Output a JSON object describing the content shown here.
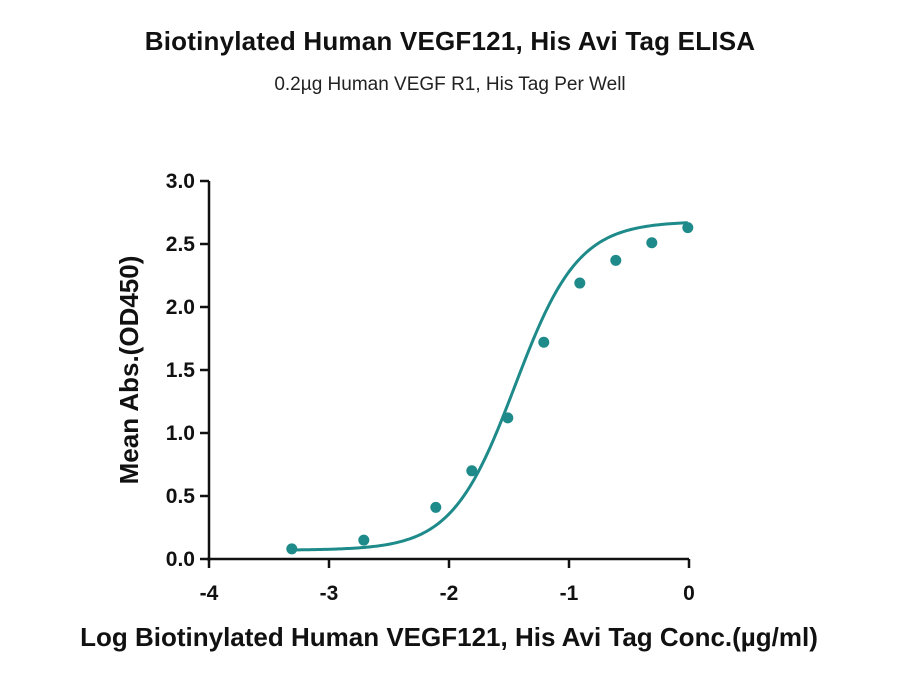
{
  "chart_data": {
    "type": "scatter",
    "title": "Biotinylated Human VEGF121, His Avi Tag ELISA",
    "subtitle": "0.2µg Human VEGF R1, His Tag Per Well",
    "xlabel": "Log Biotinylated Human VEGF121, His Avi Tag Conc.(µg/ml)",
    "ylabel": "Mean Abs.(OD450)",
    "xlim": [
      -4,
      0
    ],
    "ylim": [
      0,
      3.0
    ],
    "x_ticks": [
      "-4",
      "-3",
      "-2",
      "-1",
      "0"
    ],
    "y_ticks": [
      "0.0",
      "0.5",
      "1.0",
      "1.5",
      "2.0",
      "2.5",
      "3.0"
    ],
    "grid": false,
    "color": "#1e8a8a",
    "series": [
      {
        "points": [
          {
            "x": -3.31,
            "y": 0.08
          },
          {
            "x": -2.71,
            "y": 0.15
          },
          {
            "x": -2.11,
            "y": 0.41
          },
          {
            "x": -1.81,
            "y": 0.7
          },
          {
            "x": -1.51,
            "y": 1.12
          },
          {
            "x": -1.21,
            "y": 1.72
          },
          {
            "x": -0.91,
            "y": 2.19
          },
          {
            "x": -0.61,
            "y": 2.37
          },
          {
            "x": -0.31,
            "y": 2.51
          },
          {
            "x": -0.01,
            "y": 2.63
          }
        ]
      }
    ],
    "fit_curve": "4PL sigmoid through the points"
  }
}
